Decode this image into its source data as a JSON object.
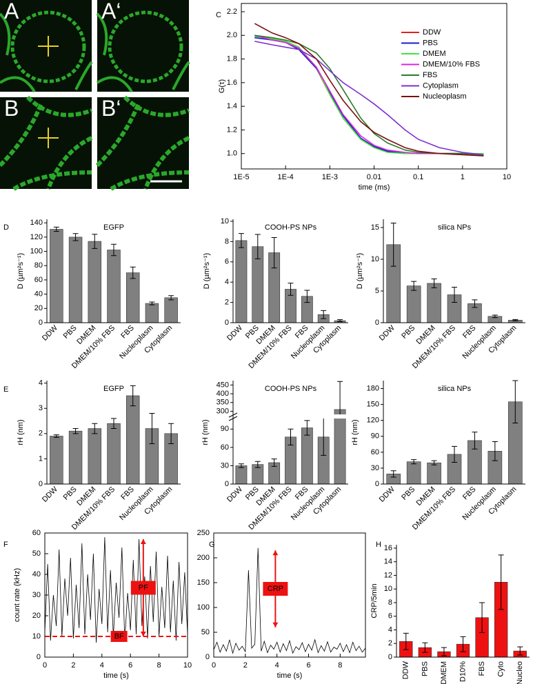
{
  "images": {
    "labels": [
      "A",
      "A‘",
      "B",
      "B‘"
    ]
  },
  "chart_data": [
    {
      "type": "line",
      "panel": "C",
      "xlabel": "time (ms)",
      "ylabel": "G(τ)",
      "x_log": true,
      "legend": "upper right",
      "xlim": [
        1e-05,
        10
      ],
      "xticks": [
        {
          "value": 1e-05,
          "label": "1E-5"
        },
        {
          "value": 0.0001,
          "label": "1E-4"
        },
        {
          "value": 0.001,
          "label": "1E-3"
        },
        0.01,
        0.1,
        1,
        10
      ],
      "ylim": [
        0.87,
        2.27
      ],
      "yticks": [
        {
          "value": 1,
          "label": "1.0"
        },
        1.2,
        1.4,
        1.6,
        1.8,
        {
          "value": 2,
          "label": "2.0"
        },
        2.2
      ],
      "x": [
        2e-05,
        5e-05,
        0.0001,
        0.0002,
        0.0005,
        0.001,
        0.002,
        0.005,
        0.01,
        0.02,
        0.05,
        0.1,
        0.3,
        1,
        3
      ],
      "series": [
        {
          "name": "DDW",
          "color": "#e32020",
          "values": [
            2.0,
            1.97,
            1.95,
            1.9,
            1.72,
            1.5,
            1.3,
            1.12,
            1.05,
            1.02,
            1.0,
            1.0,
            1.0,
            1.0,
            0.99
          ]
        },
        {
          "name": "PBS",
          "color": "#1a1ad0",
          "values": [
            1.98,
            1.96,
            1.94,
            1.88,
            1.72,
            1.52,
            1.32,
            1.13,
            1.06,
            1.02,
            1.0,
            1.0,
            1.0,
            1.0,
            0.99
          ]
        },
        {
          "name": "DMEM",
          "color": "#3ee63e",
          "values": [
            1.99,
            1.97,
            1.95,
            1.9,
            1.73,
            1.5,
            1.3,
            1.12,
            1.05,
            1.01,
            1.0,
            1.0,
            1.0,
            1.0,
            1.0
          ]
        },
        {
          "name": "DMEM/10% FBS",
          "color": "#e020e0",
          "values": [
            2.0,
            1.96,
            1.94,
            1.89,
            1.73,
            1.53,
            1.33,
            1.15,
            1.07,
            1.03,
            1.01,
            1.0,
            1.0,
            1.0,
            0.99
          ]
        },
        {
          "name": "FBS",
          "color": "#2a7a2a",
          "values": [
            2.0,
            1.98,
            1.96,
            1.93,
            1.85,
            1.72,
            1.54,
            1.3,
            1.17,
            1.09,
            1.03,
            1.01,
            1.0,
            1.0,
            0.99
          ]
        },
        {
          "name": "Cytoplasm",
          "color": "#7b2fd0",
          "values": [
            1.95,
            1.92,
            1.9,
            1.88,
            1.8,
            1.7,
            1.6,
            1.5,
            1.42,
            1.33,
            1.2,
            1.12,
            1.05,
            1.01,
            0.99
          ]
        },
        {
          "name": "Nucleoplasm",
          "color": "#7a1010",
          "values": [
            2.1,
            2.02,
            1.98,
            1.93,
            1.8,
            1.62,
            1.45,
            1.27,
            1.18,
            1.12,
            1.05,
            1.02,
            1.0,
            0.99,
            0.98
          ]
        }
      ]
    },
    {
      "type": "bar",
      "panel": "D",
      "title": "EGFP",
      "ylabel": "D (µm²s⁻¹)",
      "color": "#808080",
      "categories": [
        "DDW",
        "PBS",
        "DMEM",
        "DMEM/10% FBS",
        "FBS",
        "Nucleoplasm",
        "Cytoplasm"
      ],
      "values": [
        131,
        120,
        114,
        102,
        70,
        27,
        35
      ],
      "errors": [
        3,
        5,
        10,
        8,
        8,
        2,
        3
      ],
      "ylim": [
        0,
        145
      ],
      "yticks": [
        0,
        20,
        40,
        60,
        80,
        100,
        120,
        140
      ]
    },
    {
      "type": "bar",
      "title": "COOH-PS NPs",
      "ylabel": "D (µm²s⁻¹)",
      "color": "#808080",
      "categories": [
        "DDW",
        "PBS",
        "DMEM",
        "DMEM/10% FBS",
        "FBS",
        "Nucleoplasm",
        "Cytoplasm"
      ],
      "values": [
        8.1,
        7.5,
        6.9,
        3.3,
        2.6,
        0.8,
        0.2
      ],
      "errors": [
        0.7,
        1.2,
        1.5,
        0.6,
        0.6,
        0.4,
        0.1
      ],
      "ylim": [
        0,
        10.2
      ],
      "yticks": [
        0,
        2,
        4,
        6,
        8,
        10
      ]
    },
    {
      "type": "bar",
      "title": "silica NPs",
      "ylabel": "D (µm²s⁻¹)",
      "color": "#808080",
      "categories": [
        "DDW",
        "PBS",
        "DMEM",
        "DMEM/10% FBS",
        "FBS",
        "Nucleoplasm",
        "Cytoplasm"
      ],
      "values": [
        12.3,
        5.8,
        6.2,
        4.4,
        3.0,
        1.0,
        0.4
      ],
      "errors": [
        3.4,
        0.7,
        0.7,
        1.2,
        0.6,
        0.2,
        0.1
      ],
      "ylim": [
        0,
        16.3
      ],
      "yticks": [
        0,
        5,
        10,
        15
      ]
    },
    {
      "type": "bar",
      "panel": "E",
      "title": "EGFP",
      "ylabel": "rH (nm)",
      "color": "#808080",
      "categories": [
        "DDW",
        "PBS",
        "DMEM",
        "DMEM/10% FBS",
        "FBS",
        "Nucleoplasm",
        "Cytoplasm"
      ],
      "values": [
        1.9,
        2.1,
        2.2,
        2.4,
        3.5,
        2.2,
        2.0
      ],
      "errors": [
        0.05,
        0.1,
        0.2,
        0.2,
        0.4,
        0.6,
        0.4
      ],
      "ylim": [
        0,
        4.1
      ],
      "yticks": [
        0,
        1,
        2,
        3,
        4
      ]
    },
    {
      "type": "bar",
      "title": "COOH-PS NPs",
      "ylabel": "rH (nm)",
      "color": "#808080",
      "categories": [
        "DDW",
        "PBS",
        "DMEM",
        "DMEM/10% FBS",
        "FBS",
        "Nucleoplasm",
        "Cytoplasm"
      ],
      "values": [
        30,
        32,
        35,
        77,
        92,
        77,
        310
      ],
      "errors": [
        3,
        5,
        6,
        13,
        12,
        30,
        160
      ],
      "ylim": [
        0,
        475
      ],
      "axis_break": [
        105,
        290
      ],
      "yticks": [
        0,
        30,
        60,
        90,
        300,
        350,
        400,
        450
      ]
    },
    {
      "type": "bar",
      "title": "silica NPs",
      "ylabel": "rH (nm)",
      "color": "#808080",
      "categories": [
        "DDW",
        "PBS",
        "DMEM",
        "DMEM/10% FBS",
        "FBS",
        "Nucleoplasm",
        "Cytoplasm"
      ],
      "values": [
        19,
        42,
        40,
        56,
        82,
        62,
        155
      ],
      "errors": [
        6,
        4,
        4,
        15,
        16,
        18,
        40
      ],
      "ylim": [
        0,
        195
      ],
      "yticks": [
        0,
        30,
        60,
        90,
        120,
        150,
        180
      ]
    },
    {
      "type": "trace",
      "panel": "F",
      "xlabel": "time (s)",
      "ylabel": "count rate (kHz)",
      "color": "#000000",
      "xlim": [
        0,
        10
      ],
      "xticks": [
        0,
        2,
        4,
        6,
        8,
        10
      ],
      "ylim": [
        0,
        60
      ],
      "yticks": [
        0,
        10,
        20,
        30,
        40,
        50,
        60
      ],
      "x": [
        0,
        0.2,
        0.4,
        0.6,
        0.8,
        1,
        1.2,
        1.4,
        1.6,
        1.8,
        2,
        2.2,
        2.4,
        2.6,
        2.8,
        3,
        3.2,
        3.4,
        3.6,
        3.8,
        4,
        4.2,
        4.4,
        4.6,
        4.8,
        5,
        5.2,
        5.4,
        5.6,
        5.8,
        6,
        6.2,
        6.4,
        6.6,
        6.8,
        7,
        7.2,
        7.4,
        7.6,
        7.8,
        8,
        8.2,
        8.4,
        8.6,
        8.8,
        9,
        9.2,
        9.4,
        9.6,
        9.8,
        10
      ],
      "values": [
        12,
        45,
        8,
        30,
        15,
        52,
        10,
        38,
        20,
        48,
        9,
        35,
        14,
        55,
        11,
        40,
        18,
        50,
        7,
        33,
        16,
        58,
        12,
        42,
        10,
        36,
        19,
        53,
        8,
        31,
        13,
        47,
        11,
        57,
        15,
        39,
        9,
        44,
        17,
        51,
        10,
        34,
        14,
        49,
        12,
        37,
        8,
        46,
        16,
        41,
        11
      ],
      "hline": 10,
      "annotations": [
        {
          "text": "PF",
          "x": 6.9,
          "y": [
            10,
            57
          ]
        },
        {
          "text": "BF",
          "x": 5.2,
          "y": 10
        }
      ]
    },
    {
      "type": "trace",
      "panel": "G",
      "xlabel": "time (s)",
      "color": "#000000",
      "xlim": [
        0,
        9.6
      ],
      "xticks": [
        0,
        2,
        4,
        6,
        8
      ],
      "ylim": [
        0,
        250
      ],
      "yticks": [
        0,
        50,
        100,
        150,
        200,
        250
      ],
      "x": [
        0,
        0.2,
        0.4,
        0.6,
        0.8,
        1,
        1.2,
        1.4,
        1.6,
        1.8,
        2,
        2.2,
        2.4,
        2.6,
        2.8,
        3,
        3.2,
        3.4,
        3.6,
        3.8,
        4,
        4.2,
        4.4,
        4.6,
        4.8,
        5,
        5.2,
        5.4,
        5.6,
        5.8,
        6,
        6.2,
        6.4,
        6.6,
        6.8,
        7,
        7.2,
        7.4,
        7.6,
        7.8,
        8,
        8.2,
        8.4,
        8.6,
        8.8,
        9,
        9.2,
        9.4,
        9.6
      ],
      "values": [
        15,
        30,
        10,
        25,
        12,
        35,
        8,
        28,
        14,
        22,
        11,
        175,
        18,
        26,
        220,
        12,
        32,
        9,
        24,
        16,
        30,
        10,
        27,
        13,
        33,
        8,
        21,
        15,
        29,
        11,
        26,
        14,
        35,
        9,
        23,
        12,
        31,
        10,
        20,
        16,
        28,
        11,
        25,
        9,
        30,
        13,
        22,
        10,
        18
      ],
      "annotations": [
        {
          "text": "CRP",
          "x": 3.9,
          "y": [
            60,
            215
          ]
        }
      ]
    },
    {
      "type": "bar",
      "panel": "H",
      "ylabel": "CRP/5min",
      "color": "#ee1111",
      "categories": [
        "DDW",
        "PBS",
        "DMEM",
        "D10%",
        "FBS",
        "Cyto",
        "Nucleo"
      ],
      "values": [
        2.3,
        1.4,
        0.8,
        1.9,
        5.8,
        11,
        0.9
      ],
      "errors": [
        1.2,
        0.7,
        0.6,
        1.1,
        2.2,
        4,
        0.6
      ],
      "ylim": [
        0,
        16.5
      ],
      "yticks": [
        0,
        2,
        4,
        6,
        8,
        10,
        12,
        14,
        16
      ]
    }
  ]
}
